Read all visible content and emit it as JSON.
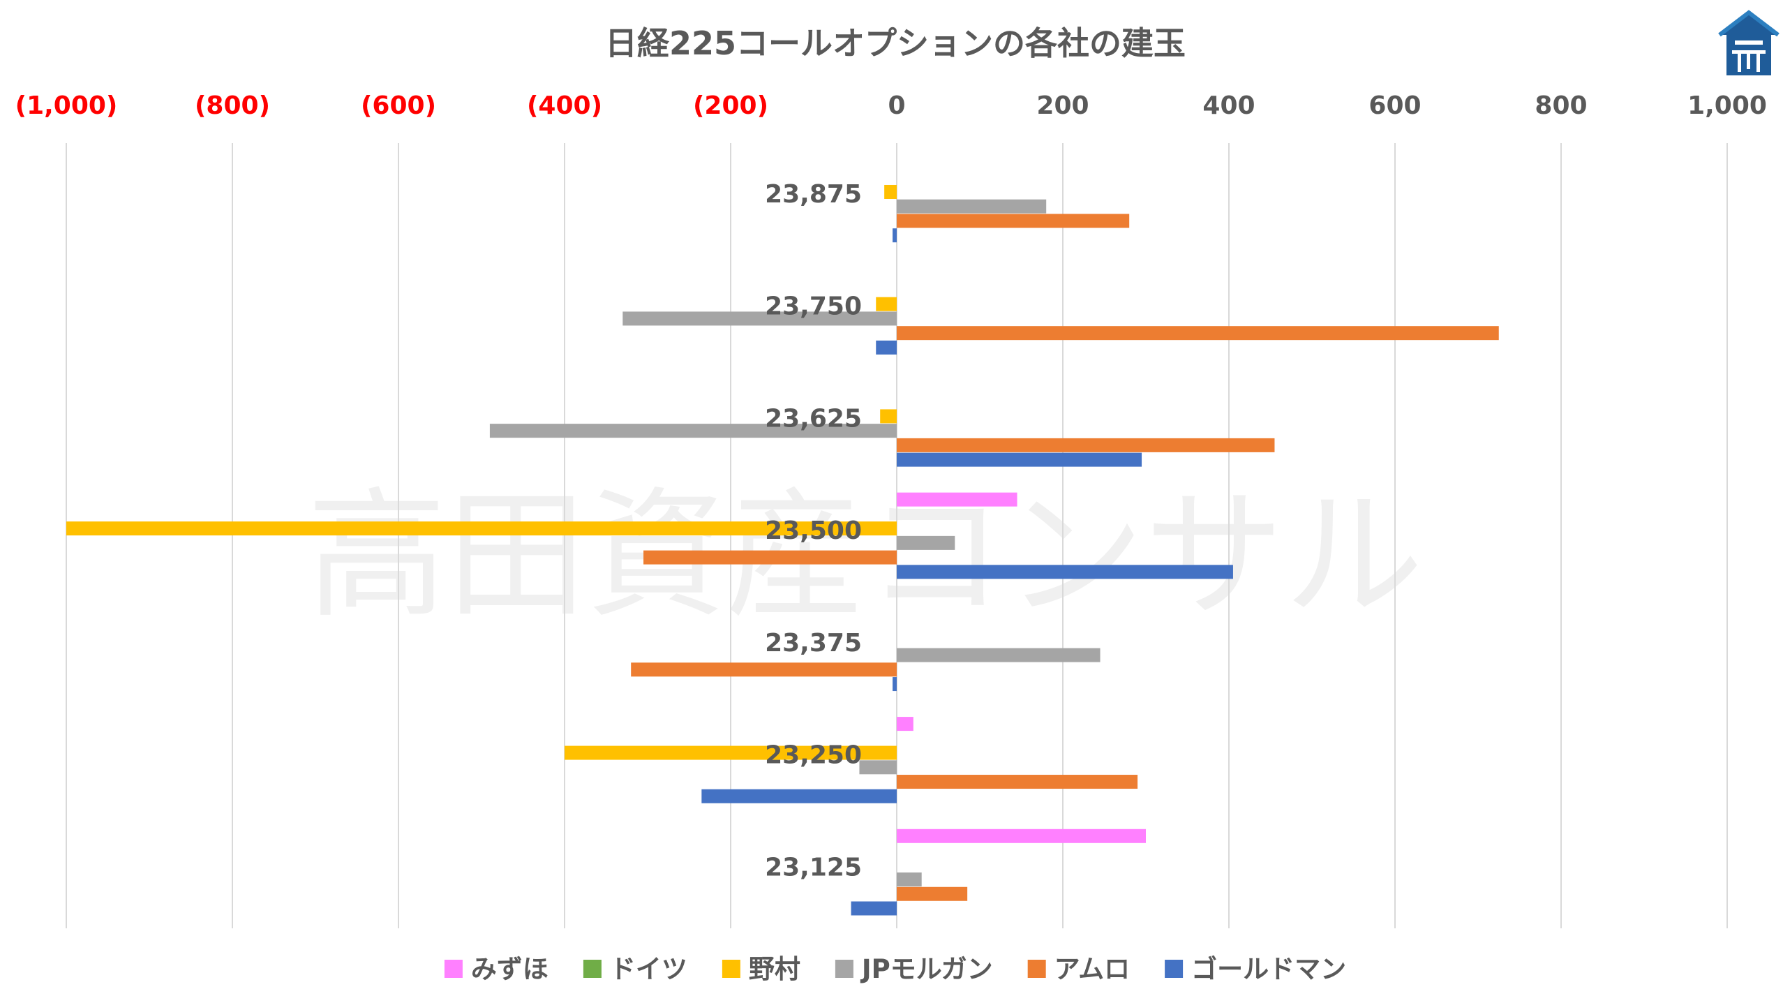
{
  "chart_data": {
    "type": "bar",
    "orientation": "horizontal",
    "title": "日経225コールオプションの各社の建玉",
    "categories": [
      "23,875",
      "23,750",
      "23,625",
      "23,500",
      "23,375",
      "23,250",
      "23,125"
    ],
    "xlim": [
      -1000,
      1000
    ],
    "x_ticks": [
      -1000,
      -800,
      -600,
      -400,
      -200,
      0,
      200,
      400,
      600,
      800,
      1000
    ],
    "x_tick_labels": [
      "(1,000)",
      "(800)",
      "(600)",
      "(400)",
      "(200)",
      "0",
      "200",
      "400",
      "600",
      "800",
      "1,000"
    ],
    "axis_position": "top",
    "grid": true,
    "legend_position": "bottom",
    "series": [
      {
        "name": "みずほ",
        "color": "#FF80FF",
        "values": [
          0,
          0,
          0,
          145,
          0,
          20,
          300
        ]
      },
      {
        "name": "ドイツ",
        "color": "#70AD47",
        "values": [
          0,
          0,
          0,
          0,
          0,
          0,
          0
        ]
      },
      {
        "name": "野村",
        "color": "#FFC000",
        "values": [
          -15,
          -25,
          -20,
          -1000,
          0,
          -400,
          0
        ]
      },
      {
        "name": "JPモルガン",
        "color": "#A5A5A5",
        "values": [
          180,
          -330,
          -490,
          70,
          245,
          -45,
          30
        ]
      },
      {
        "name": "アムロ",
        "color": "#ED7D31",
        "values": [
          280,
          725,
          455,
          -305,
          -320,
          290,
          85
        ]
      },
      {
        "name": "ゴールドマン",
        "color": "#4472C4",
        "values": [
          -5,
          -25,
          295,
          405,
          -5,
          -235,
          -55
        ]
      }
    ],
    "tick_colors": {
      "negative": "#FF0000",
      "positive": "#595959"
    },
    "watermark": "高田資産コンサル"
  }
}
